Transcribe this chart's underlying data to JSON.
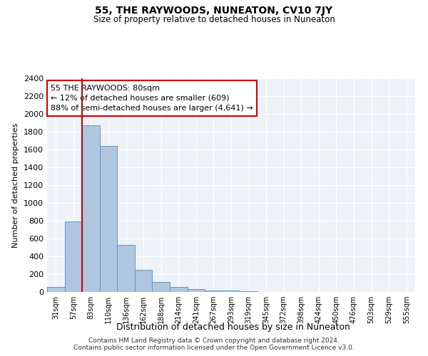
{
  "title": "55, THE RAYWOODS, NUNEATON, CV10 7JY",
  "subtitle": "Size of property relative to detached houses in Nuneaton",
  "xlabel": "Distribution of detached houses by size in Nuneaton",
  "ylabel": "Number of detached properties",
  "categories": [
    "31sqm",
    "57sqm",
    "83sqm",
    "110sqm",
    "136sqm",
    "162sqm",
    "188sqm",
    "214sqm",
    "241sqm",
    "267sqm",
    "293sqm",
    "319sqm",
    "345sqm",
    "372sqm",
    "398sqm",
    "424sqm",
    "450sqm",
    "476sqm",
    "503sqm",
    "529sqm",
    "555sqm"
  ],
  "values": [
    55,
    790,
    1870,
    1640,
    530,
    245,
    110,
    60,
    35,
    20,
    15,
    5,
    2,
    1,
    0,
    0,
    0,
    0,
    0,
    0,
    0
  ],
  "bar_color": "#aec6df",
  "bar_edge_color": "#5a9ac8",
  "property_line_color": "#cc0000",
  "property_line_index": 1.5,
  "annotation_box_text": "55 THE RAYWOODS: 80sqm\n← 12% of detached houses are smaller (609)\n88% of semi-detached houses are larger (4,641) →",
  "annotation_box_color": "#cc0000",
  "background_color": "#eef2f7",
  "grid_color": "#ffffff",
  "ylim": [
    0,
    2400
  ],
  "yticks": [
    0,
    200,
    400,
    600,
    800,
    1000,
    1200,
    1400,
    1600,
    1800,
    2000,
    2200,
    2400
  ],
  "footer_line1": "Contains HM Land Registry data © Crown copyright and database right 2024.",
  "footer_line2": "Contains public sector information licensed under the Open Government Licence v3.0."
}
